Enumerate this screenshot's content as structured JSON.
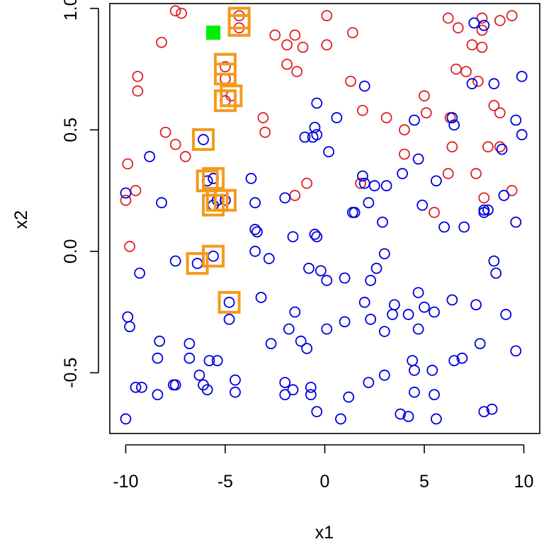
{
  "chart_data": {
    "type": "scatter",
    "xlabel": "x1",
    "ylabel": "x2",
    "xlim": [
      -10.8,
      10.8
    ],
    "ylim": [
      -0.75,
      1.02
    ],
    "x_ticks": [
      -10,
      -5,
      0,
      5,
      10
    ],
    "y_ticks": [
      -0.5,
      0.0,
      0.5,
      1.0
    ],
    "x_tick_labels": [
      "-10",
      "-5",
      "0",
      "5",
      "10"
    ],
    "y_tick_labels": [
      "-0.5",
      "0.0",
      "0.5",
      "1.0"
    ],
    "grid": false,
    "legend": "none",
    "colors": {
      "red_series": "#dd2222",
      "blue_series": "#0000dd",
      "highlight_box": "#f39a1c",
      "marker_square": "#00ee00"
    },
    "series": [
      {
        "marker": "open-circle",
        "color": "#dd2222",
        "points": [
          [
            -7.5,
            0.99
          ],
          [
            -7.2,
            0.98
          ],
          [
            -8.2,
            0.86
          ],
          [
            -4.3,
            0.97
          ],
          [
            -4.3,
            0.92
          ],
          [
            -2.5,
            0.89
          ],
          [
            -1.9,
            0.85
          ],
          [
            -1.5,
            0.89
          ],
          [
            -1.1,
            0.84
          ],
          [
            0.1,
            0.97
          ],
          [
            0.1,
            0.85
          ],
          [
            1.4,
            0.9
          ],
          [
            -1.9,
            0.77
          ],
          [
            -1.4,
            0.74
          ],
          [
            -5.0,
            0.76
          ],
          [
            -5.0,
            0.71
          ],
          [
            -4.7,
            0.64
          ],
          [
            -5.0,
            0.62
          ],
          [
            -9.4,
            0.72
          ],
          [
            -9.4,
            0.66
          ],
          [
            -8.0,
            0.49
          ],
          [
            -7.5,
            0.44
          ],
          [
            -7.0,
            0.39
          ],
          [
            -3.1,
            0.55
          ],
          [
            -3.0,
            0.49
          ],
          [
            -0.9,
            0.28
          ],
          [
            -1.5,
            0.23
          ],
          [
            -9.9,
            0.36
          ],
          [
            -9.5,
            0.25
          ],
          [
            -10.0,
            0.21
          ],
          [
            -9.8,
            0.02
          ],
          [
            1.3,
            0.7
          ],
          [
            1.9,
            0.58
          ],
          [
            1.8,
            0.28
          ],
          [
            3.1,
            0.55
          ],
          [
            4.0,
            0.5
          ],
          [
            4.0,
            0.4
          ],
          [
            5.0,
            0.64
          ],
          [
            5.1,
            0.57
          ],
          [
            5.5,
            0.16
          ],
          [
            6.2,
            0.96
          ],
          [
            6.7,
            0.92
          ],
          [
            7.9,
            0.96
          ],
          [
            7.9,
            0.91
          ],
          [
            7.4,
            0.85
          ],
          [
            7.9,
            0.84
          ],
          [
            8.8,
            0.95
          ],
          [
            9.4,
            0.97
          ],
          [
            6.6,
            0.75
          ],
          [
            7.1,
            0.74
          ],
          [
            7.7,
            0.7
          ],
          [
            6.3,
            0.55
          ],
          [
            6.4,
            0.43
          ],
          [
            6.2,
            0.32
          ],
          [
            7.6,
            0.32
          ],
          [
            8.2,
            0.43
          ],
          [
            8.5,
            0.6
          ],
          [
            8.8,
            0.57
          ],
          [
            8.8,
            0.43
          ],
          [
            8.0,
            0.22
          ],
          [
            9.4,
            0.25
          ]
        ]
      },
      {
        "marker": "open-circle",
        "color": "#0000dd",
        "points": [
          [
            -6.1,
            0.46
          ],
          [
            -5.9,
            0.29
          ],
          [
            -5.6,
            0.3
          ],
          [
            -5.4,
            0.21
          ],
          [
            -5.6,
            0.19
          ],
          [
            -5.0,
            0.21
          ],
          [
            -3.7,
            0.3
          ],
          [
            -3.5,
            0.2
          ],
          [
            -3.5,
            0.09
          ],
          [
            -3.4,
            0.08
          ],
          [
            -6.4,
            -0.05
          ],
          [
            -5.6,
            -0.02
          ],
          [
            -3.5,
            0.0
          ],
          [
            -2.8,
            -0.03
          ],
          [
            -3.2,
            -0.19
          ],
          [
            -4.8,
            -0.21
          ],
          [
            -4.8,
            -0.28
          ],
          [
            -8.8,
            0.39
          ],
          [
            -8.2,
            0.2
          ],
          [
            -10.0,
            0.24
          ],
          [
            -9.3,
            -0.09
          ],
          [
            -7.5,
            -0.04
          ],
          [
            -9.9,
            -0.27
          ],
          [
            -9.8,
            -0.31
          ],
          [
            -8.3,
            -0.37
          ],
          [
            -8.4,
            -0.44
          ],
          [
            -6.8,
            -0.38
          ],
          [
            -6.8,
            -0.44
          ],
          [
            -5.8,
            -0.45
          ],
          [
            -5.4,
            -0.45
          ],
          [
            -6.3,
            -0.51
          ],
          [
            -6.1,
            -0.55
          ],
          [
            -5.9,
            -0.57
          ],
          [
            -4.5,
            -0.53
          ],
          [
            -4.5,
            -0.58
          ],
          [
            -7.5,
            -0.55
          ],
          [
            -7.6,
            -0.55
          ],
          [
            -9.2,
            -0.56
          ],
          [
            -9.5,
            -0.56
          ],
          [
            -8.4,
            -0.59
          ],
          [
            -10.0,
            -0.69
          ],
          [
            -2.0,
            0.22
          ],
          [
            -1.6,
            0.06
          ],
          [
            -1.5,
            -0.25
          ],
          [
            -1.8,
            -0.32
          ],
          [
            -1.2,
            -0.37
          ],
          [
            -0.9,
            -0.4
          ],
          [
            -2.7,
            -0.38
          ],
          [
            -2.0,
            -0.54
          ],
          [
            -1.6,
            -0.57
          ],
          [
            -2.0,
            -0.59
          ],
          [
            -0.7,
            -0.56
          ],
          [
            -0.7,
            -0.59
          ],
          [
            -0.4,
            -0.66
          ],
          [
            -1.0,
            0.47
          ],
          [
            -0.6,
            0.47
          ],
          [
            -0.5,
            0.51
          ],
          [
            -0.4,
            0.48
          ],
          [
            -0.4,
            0.61
          ],
          [
            0.6,
            0.55
          ],
          [
            0.2,
            0.41
          ],
          [
            -0.5,
            0.07
          ],
          [
            -0.4,
            0.06
          ],
          [
            -0.8,
            -0.07
          ],
          [
            -0.2,
            -0.08
          ],
          [
            0.1,
            -0.12
          ],
          [
            1.0,
            -0.11
          ],
          [
            2.0,
            0.68
          ],
          [
            1.9,
            0.31
          ],
          [
            2.0,
            0.28
          ],
          [
            2.5,
            0.27
          ],
          [
            3.1,
            0.27
          ],
          [
            1.4,
            0.16
          ],
          [
            1.5,
            0.16
          ],
          [
            2.2,
            0.2
          ],
          [
            2.9,
            0.12
          ],
          [
            3.0,
            -0.01
          ],
          [
            2.6,
            -0.07
          ],
          [
            2.3,
            -0.12
          ],
          [
            2.0,
            -0.21
          ],
          [
            1.0,
            -0.29
          ],
          [
            0.1,
            -0.32
          ],
          [
            2.3,
            -0.28
          ],
          [
            3.4,
            -0.26
          ],
          [
            3.5,
            -0.22
          ],
          [
            3.0,
            -0.33
          ],
          [
            2.2,
            -0.54
          ],
          [
            3.0,
            -0.51
          ],
          [
            1.2,
            -0.6
          ],
          [
            0.8,
            -0.69
          ],
          [
            3.8,
            -0.67
          ],
          [
            4.2,
            -0.68
          ],
          [
            4.5,
            -0.58
          ],
          [
            4.4,
            -0.45
          ],
          [
            4.5,
            -0.49
          ],
          [
            5.4,
            -0.49
          ],
          [
            5.5,
            -0.59
          ],
          [
            5.6,
            -0.69
          ],
          [
            3.9,
            0.32
          ],
          [
            4.7,
            0.38
          ],
          [
            4.5,
            0.54
          ],
          [
            4.9,
            0.19
          ],
          [
            5.6,
            0.29
          ],
          [
            6.0,
            0.1
          ],
          [
            4.2,
            -0.26
          ],
          [
            4.7,
            -0.17
          ],
          [
            5.0,
            -0.23
          ],
          [
            4.7,
            -0.32
          ],
          [
            5.5,
            -0.25
          ],
          [
            6.4,
            0.55
          ],
          [
            6.5,
            0.52
          ],
          [
            6.4,
            -0.2
          ],
          [
            6.5,
            -0.45
          ],
          [
            6.9,
            -0.44
          ],
          [
            7.0,
            0.1
          ],
          [
            7.4,
            0.69
          ],
          [
            7.5,
            0.94
          ],
          [
            8.0,
            0.93
          ],
          [
            8.5,
            0.69
          ],
          [
            8.9,
            0.42
          ],
          [
            9.0,
            0.23
          ],
          [
            8.0,
            0.17
          ],
          [
            8.2,
            0.17
          ],
          [
            8.0,
            0.16
          ],
          [
            8.5,
            -0.04
          ],
          [
            8.6,
            -0.09
          ],
          [
            7.6,
            -0.22
          ],
          [
            7.8,
            -0.38
          ],
          [
            9.1,
            -0.26
          ],
          [
            9.6,
            0.12
          ],
          [
            9.6,
            0.54
          ],
          [
            9.9,
            0.72
          ],
          [
            9.9,
            0.48
          ],
          [
            9.6,
            -0.41
          ],
          [
            8.4,
            -0.65
          ],
          [
            8.0,
            -0.66
          ]
        ]
      }
    ],
    "highlighted_points": [
      [
        -4.3,
        0.96
      ],
      [
        -4.3,
        0.93
      ],
      [
        -5.0,
        0.77
      ],
      [
        -5.0,
        0.73
      ],
      [
        -4.7,
        0.64
      ],
      [
        -5.0,
        0.62
      ],
      [
        -6.1,
        0.46
      ],
      [
        -5.9,
        0.29
      ],
      [
        -5.6,
        0.3
      ],
      [
        -5.4,
        0.21
      ],
      [
        -5.6,
        0.19
      ],
      [
        -5.0,
        0.21
      ],
      [
        -6.4,
        -0.05
      ],
      [
        -5.6,
        -0.02
      ],
      [
        -4.8,
        -0.21
      ]
    ],
    "query_point": [
      -5.6,
      0.9
    ]
  }
}
